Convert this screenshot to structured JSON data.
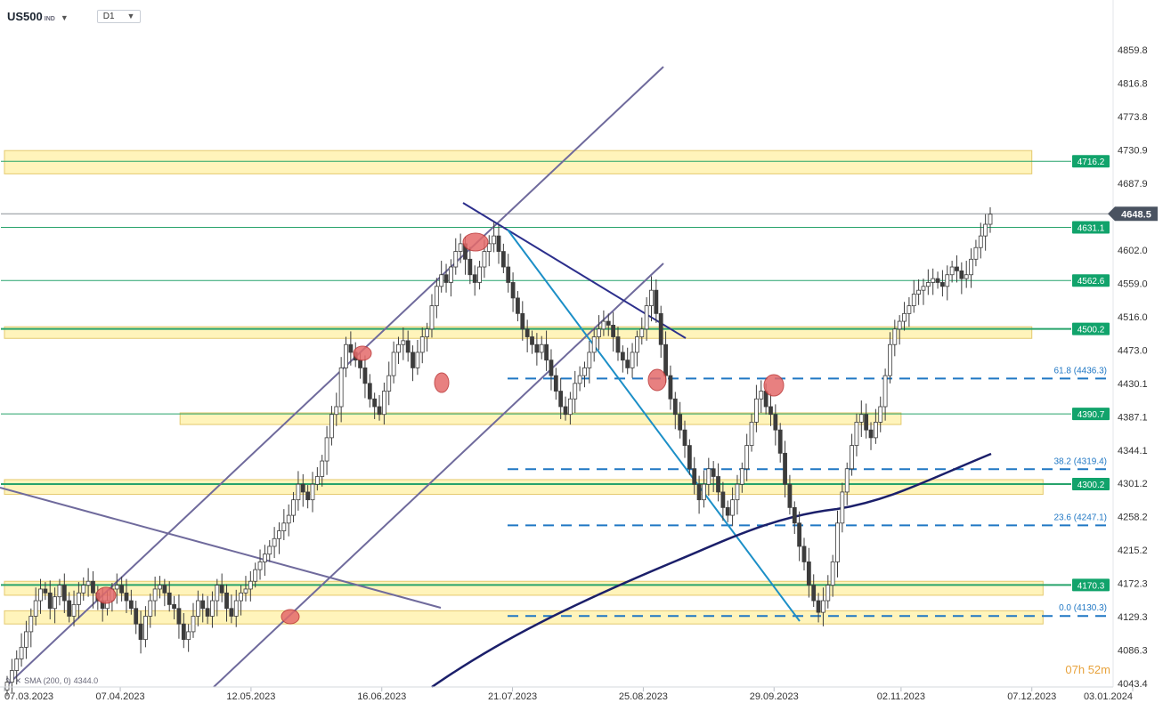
{
  "header": {
    "symbol": "US500",
    "symbol_type": "IND",
    "timeframe": "D1"
  },
  "indicator": {
    "sma_label": "SMA (200, 0)",
    "sma_value": "4344.0"
  },
  "timer": {
    "hours": "07h",
    "minutes": "52m"
  },
  "colors": {
    "candle": "#3c3c3c",
    "level_line": "#27a36b",
    "level_badge": "#11a36b",
    "zone_fill": "#fff3b0",
    "zone_border": "#e0c055",
    "trendline": "#6f6a9c",
    "downtrend": "#2c2f8c",
    "blue_line": "#1c8fc7",
    "fib": "#1f77c4",
    "sma": "#1b1f6a",
    "marker_fill": "#e46a6a",
    "current_badge": "#4a5361"
  },
  "chart_data": {
    "type": "candlestick",
    "y_range": [
      4043.4,
      4880
    ],
    "x_range": [
      "2023-03-07",
      "2024-01-03"
    ],
    "y_ticks": [
      "4859.8",
      "4816.8",
      "4773.8",
      "4730.9",
      "4687.9",
      "4602.0",
      "4559.0",
      "4516.0",
      "4473.0",
      "4430.1",
      "4387.1",
      "4344.1",
      "4301.2",
      "4258.2",
      "4215.2",
      "4172.3",
      "4129.3",
      "4086.3",
      "4043.4"
    ],
    "x_ticks": [
      "07.03.2023",
      "07.04.2023",
      "12.05.2023",
      "16.06.2023",
      "21.07.2023",
      "25.08.2023",
      "29.09.2023",
      "02.11.2023",
      "07.12.2023",
      "03.01.2024"
    ],
    "current_price": "4648.5",
    "levels": [
      "4716.2",
      "4631.1",
      "4562.6",
      "4500.2",
      "4390.7",
      "4300.2",
      "4170.3"
    ],
    "zones": [
      {
        "from": 4700,
        "to": 4730,
        "start": "2023-03-07",
        "end": "2023-12-07"
      },
      {
        "from": 4488,
        "to": 4503,
        "start": "2023-03-07",
        "end": "2023-12-07"
      },
      {
        "from": 4377,
        "to": 4392,
        "start": "2023-04-23",
        "end": "2023-11-02"
      },
      {
        "from": 4287,
        "to": 4306,
        "start": "2023-03-07",
        "end": "2023-12-10"
      },
      {
        "from": 4157,
        "to": 4175,
        "start": "2023-03-07",
        "end": "2023-12-10"
      },
      {
        "from": 4120,
        "to": 4137,
        "start": "2023-03-07",
        "end": "2023-12-10"
      }
    ],
    "fib_levels": [
      {
        "label": "61.8 (4436.3)",
        "value": 4436.3
      },
      {
        "label": "38.2 (4319.4)",
        "value": 4319.4
      },
      {
        "label": "23.6 (4247.1)",
        "value": 4247.1
      },
      {
        "label": "0.0 (4130.3)",
        "value": 4130.3
      }
    ],
    "candles_close": [
      4045,
      4060,
      4075,
      4090,
      4110,
      4130,
      4150,
      4165,
      4160,
      4140,
      4155,
      4170,
      4150,
      4130,
      4145,
      4160,
      4170,
      4175,
      4160,
      4150,
      4140,
      4150,
      4165,
      4170,
      4160,
      4150,
      4140,
      4120,
      4100,
      4130,
      4150,
      4165,
      4170,
      4160,
      4145,
      4140,
      4120,
      4100,
      4110,
      4130,
      4150,
      4140,
      4130,
      4150,
      4170,
      4160,
      4140,
      4130,
      4150,
      4160,
      4165,
      4175,
      4190,
      4200,
      4210,
      4220,
      4230,
      4240,
      4250,
      4260,
      4280,
      4300,
      4290,
      4280,
      4300,
      4310,
      4330,
      4360,
      4390,
      4400,
      4450,
      4480,
      4470,
      4460,
      4450,
      4430,
      4410,
      4400,
      4390,
      4420,
      4440,
      4470,
      4480,
      4485,
      4470,
      4450,
      4470,
      4490,
      4500,
      4530,
      4555,
      4570,
      4560,
      4580,
      4600,
      4610,
      4590,
      4570,
      4560,
      4580,
      4600,
      4610,
      4620,
      4600,
      4580,
      4560,
      4540,
      4520,
      4500,
      4490,
      4480,
      4470,
      4480,
      4460,
      4440,
      4420,
      4400,
      4390,
      4410,
      4430,
      4440,
      4450,
      4470,
      4490,
      4500,
      4510,
      4505,
      4490,
      4470,
      4460,
      4450,
      4470,
      4490,
      4500,
      4530,
      4550,
      4520,
      4480,
      4440,
      4410,
      4390,
      4370,
      4350,
      4320,
      4300,
      4280,
      4300,
      4320,
      4310,
      4290,
      4270,
      4260,
      4280,
      4300,
      4320,
      4350,
      4380,
      4410,
      4420,
      4400,
      4390,
      4370,
      4340,
      4300,
      4270,
      4250,
      4220,
      4200,
      4170,
      4150,
      4135,
      4150,
      4170,
      4200,
      4250,
      4290,
      4320,
      4350,
      4380,
      4390,
      4370,
      4360,
      4380,
      4400,
      4440,
      4480,
      4500,
      4510,
      4520,
      4530,
      4545,
      4550,
      4555,
      4560,
      4565,
      4560,
      4555,
      4570,
      4580,
      4575,
      4565,
      4570,
      4590,
      4605,
      4620,
      4635,
      4648
    ]
  }
}
